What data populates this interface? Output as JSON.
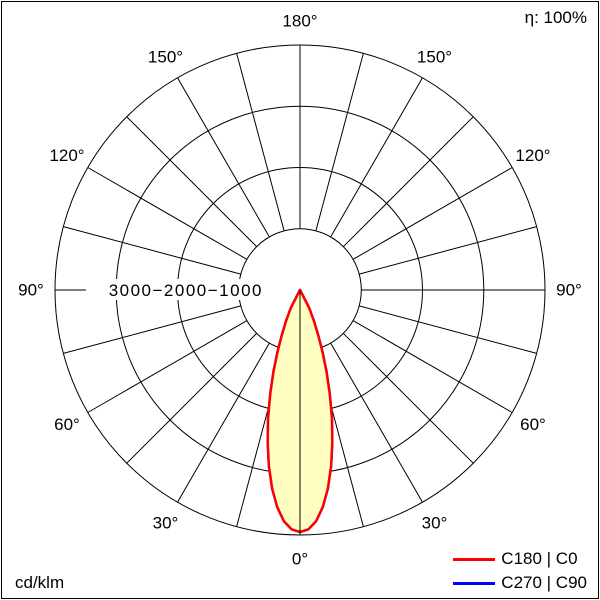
{
  "header": {
    "eta_label": "η: 100%"
  },
  "footer": {
    "unit_label": "cd/klm"
  },
  "legend": {
    "position": "bottom-right",
    "items": [
      {
        "label": "C180 | C0",
        "color": "#ff0000"
      },
      {
        "label": "C270 | C90",
        "color": "#0000ff"
      }
    ]
  },
  "chart_data": {
    "type": "line",
    "projection": "polar",
    "title": "",
    "unit": "cd/klm",
    "efficiency": "η: 100%",
    "grid": true,
    "legend_position": "bottom-right",
    "angle_step_deg": 15,
    "angle_ticks": [
      {
        "deg": 0,
        "label": "0°"
      },
      {
        "deg": 30,
        "label": "30°"
      },
      {
        "deg": 60,
        "label": "60°"
      },
      {
        "deg": 90,
        "label": "90°"
      },
      {
        "deg": 120,
        "label": "120°"
      },
      {
        "deg": 150,
        "label": "150°"
      },
      {
        "deg": 180,
        "label": "180°"
      }
    ],
    "radial_ticks": [
      1000,
      2000,
      3000
    ],
    "radial_max": 4000,
    "radial_axis_label": "3000−2000−1000",
    "colors": {
      "grid": "#000000",
      "fill": "#ffffc2",
      "c0": "#ff0000",
      "c90": "#0000ff"
    },
    "series": [
      {
        "id": "c0",
        "name": "C180 | C0",
        "color": "#ff0000",
        "fill": "#ffffc2",
        "gamma_deg": [
          0,
          2,
          4,
          6,
          8,
          10,
          12,
          14,
          16,
          18,
          20,
          22,
          24,
          27,
          30
        ],
        "values": [
          3950,
          3910,
          3780,
          3560,
          3270,
          2920,
          2540,
          2150,
          1760,
          1400,
          1070,
          790,
          560,
          330,
          0
        ]
      },
      {
        "id": "c90",
        "name": "C270 | C90",
        "color": "#0000ff",
        "fill": "#ffffc2",
        "gamma_deg": [
          0,
          2,
          4,
          6,
          8,
          10,
          12,
          14,
          16,
          18,
          20,
          22,
          24,
          27,
          30
        ],
        "values": [
          3950,
          3910,
          3780,
          3560,
          3270,
          2920,
          2540,
          2150,
          1760,
          1400,
          1070,
          790,
          560,
          330,
          0
        ]
      }
    ]
  }
}
